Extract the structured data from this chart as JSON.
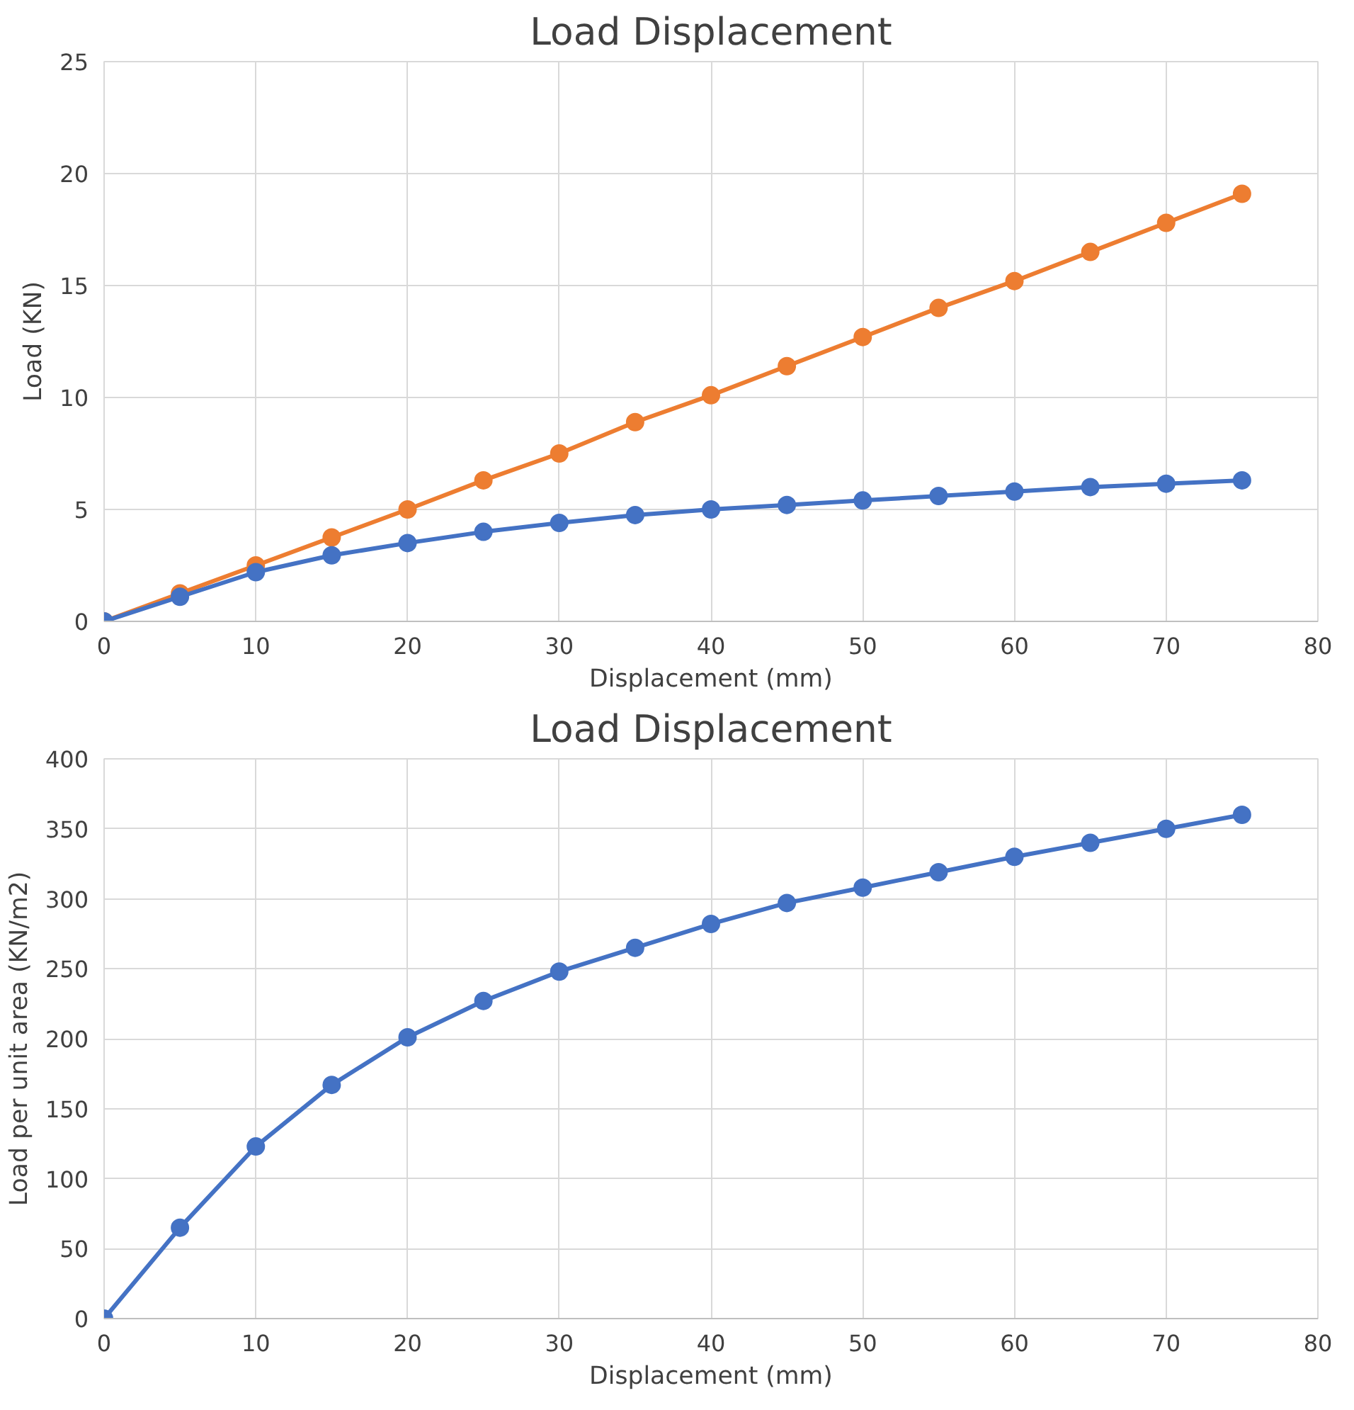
{
  "chart_data": [
    {
      "type": "line",
      "title": "Load Displacement",
      "xlabel": "Displacement (mm)",
      "ylabel": "Load (KN)",
      "x": [
        0,
        5,
        10,
        15,
        20,
        25,
        30,
        35,
        40,
        45,
        50,
        55,
        60,
        65,
        70,
        75
      ],
      "xlim": [
        0,
        80
      ],
      "xticks": [
        0,
        10,
        20,
        30,
        40,
        50,
        60,
        70,
        80
      ],
      "ylim": [
        0,
        25
      ],
      "yticks": [
        0,
        5,
        10,
        15,
        20,
        25
      ],
      "grid": true,
      "marker": "circle",
      "line_style": "solid",
      "series": [
        {
          "color": "#4472c4",
          "values": [
            0,
            1.1,
            2.2,
            2.95,
            3.5,
            4.0,
            4.4,
            4.75,
            5.0,
            5.2,
            5.4,
            5.6,
            5.8,
            6.0,
            6.15,
            6.3
          ]
        },
        {
          "color": "#ed7d31",
          "values": [
            0,
            1.25,
            2.5,
            3.75,
            5.0,
            6.3,
            7.5,
            8.9,
            10.1,
            11.4,
            12.7,
            14.0,
            15.2,
            16.5,
            17.8,
            19.1
          ]
        }
      ]
    },
    {
      "type": "line",
      "title": "Load Displacement",
      "xlabel": "Displacement (mm)",
      "ylabel": "Load per unit area (KN/m2)",
      "x": [
        0,
        5,
        10,
        15,
        20,
        25,
        30,
        35,
        40,
        45,
        50,
        55,
        60,
        65,
        70,
        75
      ],
      "xlim": [
        0,
        80
      ],
      "xticks": [
        0,
        10,
        20,
        30,
        40,
        50,
        60,
        70,
        80
      ],
      "ylim": [
        0,
        400
      ],
      "yticks": [
        0,
        50,
        100,
        150,
        200,
        250,
        300,
        350,
        400
      ],
      "grid": true,
      "marker": "circle",
      "line_style": "solid",
      "series": [
        {
          "color": "#4472c4",
          "values": [
            0,
            65,
            123,
            167,
            201,
            227,
            248,
            265,
            282,
            297,
            308,
            319,
            330,
            340,
            350,
            360
          ]
        }
      ]
    }
  ]
}
